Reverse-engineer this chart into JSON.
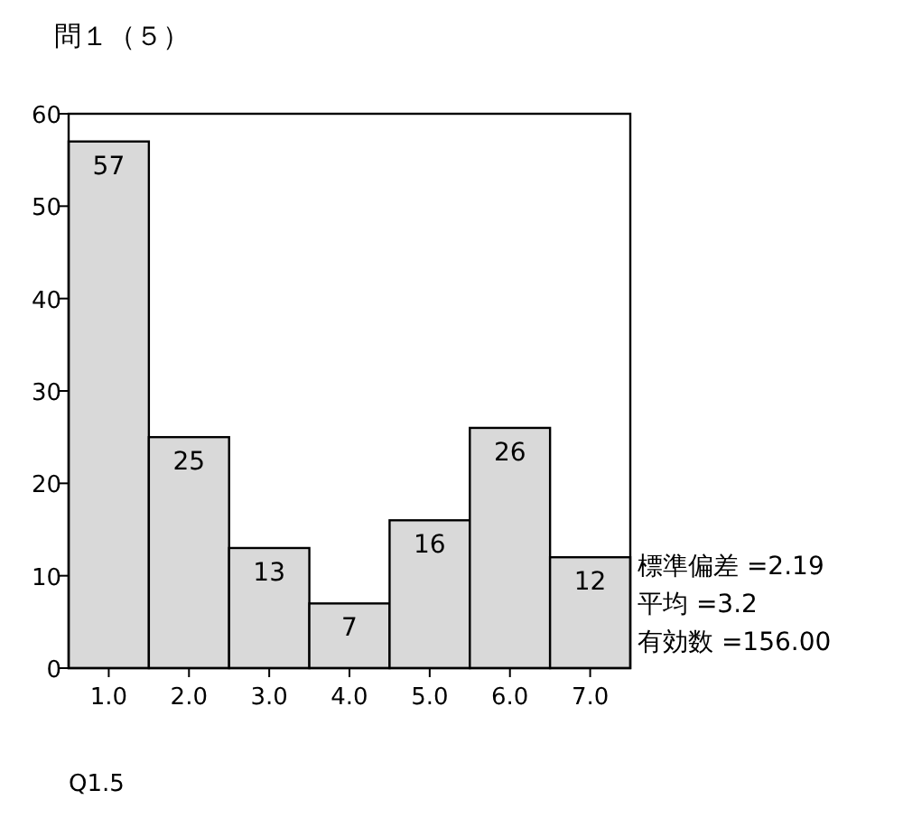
{
  "chart_data": {
    "type": "bar",
    "title": "問１（５）",
    "categories": [
      "1.0",
      "2.0",
      "3.0",
      "4.0",
      "5.0",
      "6.0",
      "7.0"
    ],
    "values": [
      57,
      25,
      13,
      7,
      16,
      26,
      12
    ],
    "color": "#d9d9d9",
    "ylim": [
      0,
      60
    ],
    "yticks": [
      0,
      10,
      20,
      30,
      40,
      50,
      60
    ],
    "data_labels": true,
    "annotations": [
      "標準偏差 =2.19",
      "平均 =3.2",
      "有効数 =156.00",
      "Q1.5"
    ]
  }
}
